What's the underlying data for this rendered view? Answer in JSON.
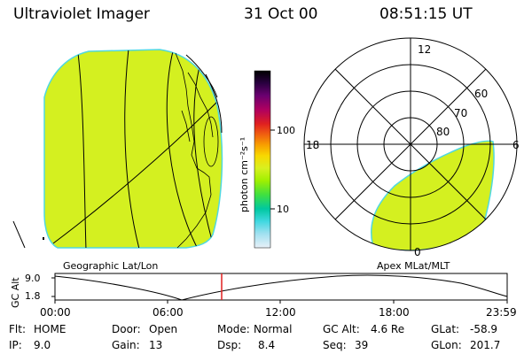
{
  "header": {
    "title": "Ultraviolet Imager",
    "date": "31 Oct 00",
    "time": "08:51:15 UT"
  },
  "geo_panel": {
    "label": "Geographic Lat/Lon"
  },
  "apex_panel": {
    "label": "Apex MLat/MLT",
    "mlt_labels": {
      "top": "12",
      "left": "18",
      "right": "6",
      "bottom": "0"
    },
    "lat_labels": [
      "60",
      "70",
      "80"
    ]
  },
  "colorbar": {
    "unit": "photon cm⁻²s⁻¹",
    "scale": "log",
    "tick_labels": [
      "100",
      "10"
    ],
    "colors": [
      "#000000",
      "#2a0040",
      "#6a0070",
      "#b00060",
      "#e02020",
      "#f06010",
      "#f8a000",
      "#f8d800",
      "#d8f020",
      "#a0f000",
      "#40e040",
      "#00c8a0",
      "#40d8e0",
      "#a0e0f0",
      "#e8f0f8"
    ]
  },
  "altitude_strip": {
    "axis_label": "GC Alt",
    "y_ticks": [
      "9.0",
      "1.8"
    ],
    "x_ticks": [
      "00:00",
      "06:00",
      "12:00",
      "18:00",
      "23:59"
    ],
    "current_time_marker_color": "#e02020"
  },
  "info_rows": [
    [
      {
        "key": "Flt:",
        "value": "HOME"
      },
      {
        "key": "Door:",
        "value": "Open"
      },
      {
        "key": "Mode:",
        "value": "Normal"
      },
      {
        "key": "GC Alt:",
        "value": "4.6 Re"
      },
      {
        "key": "GLat:",
        "value": "-58.9"
      }
    ],
    [
      {
        "key": "IP:",
        "value": "9.0"
      },
      {
        "key": "Gain:",
        "value": "13"
      },
      {
        "key": "Dsp:",
        "value": "8.4"
      },
      {
        "key": "Seq:",
        "value": "39"
      },
      {
        "key": "GLon:",
        "value": "201.7"
      }
    ]
  ],
  "colors": {
    "aurora_fill": "#d4f020",
    "aurora_edge": "#50d8e0",
    "grid_line": "#000000"
  }
}
